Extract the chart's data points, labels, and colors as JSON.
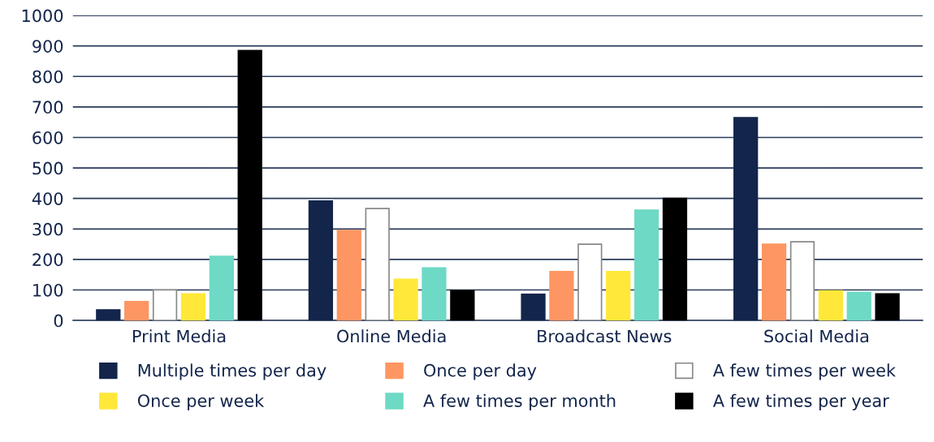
{
  "chart_data": {
    "type": "bar",
    "categories": [
      "Print Media",
      "Online Media",
      "Broadcast News",
      "Social Media"
    ],
    "series": [
      {
        "name": "Multiple times per day",
        "color": "#13254b",
        "values": [
          35,
          392,
          86,
          665
        ]
      },
      {
        "name": "Once per day",
        "color": "#fd9662",
        "values": [
          62,
          295,
          160,
          250
        ]
      },
      {
        "name": "A few times per week",
        "color": "#ffffff",
        "values": [
          100,
          367,
          250,
          258
        ]
      },
      {
        "name": "Once per week",
        "color": "#ffe83a",
        "values": [
          87,
          135,
          160,
          97
        ]
      },
      {
        "name": "A few times per month",
        "color": "#6ed9c5",
        "values": [
          210,
          172,
          362,
          92
        ]
      },
      {
        "name": "A few times per year",
        "color": "#000000",
        "values": [
          885,
          98,
          400,
          87
        ]
      }
    ],
    "ylim": [
      0,
      1000
    ],
    "yticks": [
      0,
      100,
      200,
      300,
      400,
      500,
      600,
      700,
      800,
      900,
      1000
    ],
    "grid": "y",
    "legend": "bottom"
  }
}
